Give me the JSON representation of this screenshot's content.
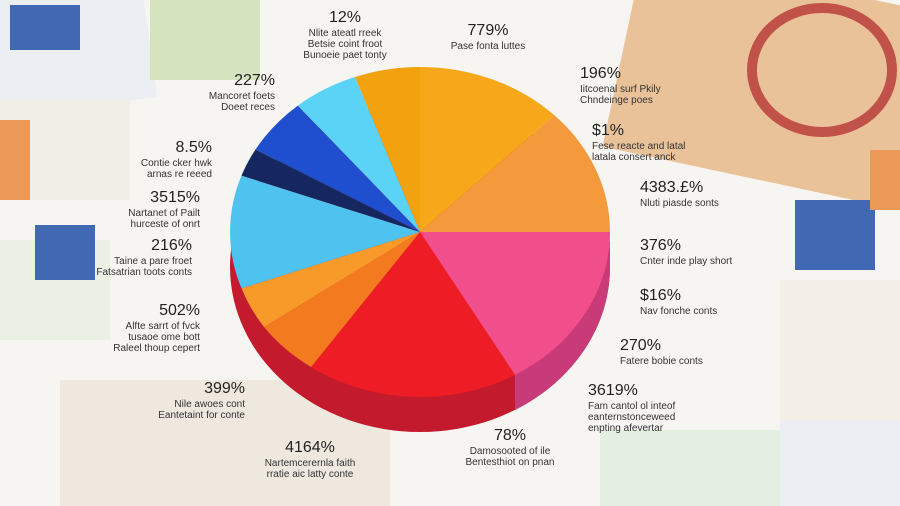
{
  "callouts": [
    {
      "figure": "12%",
      "lines": [
        "Nlite ateatl rreek",
        "Betsie coint froot",
        "Bunoeie paet tonty"
      ]
    },
    {
      "figure": "779%",
      "lines": [
        "Pase fonta luttes"
      ]
    },
    {
      "figure": "196%",
      "lines": [
        "Iitcoenal surf Pkily",
        "Chndeinge poes"
      ]
    },
    {
      "figure": "$1%",
      "lines": [
        "Fese reacte and latal",
        "latala consert anck"
      ]
    },
    {
      "figure": "4383.£%",
      "lines": [
        "Nluti piasde sonts"
      ]
    },
    {
      "figure": "376%",
      "lines": [
        "Cnter inde play short"
      ]
    },
    {
      "figure": "$16%",
      "lines": [
        "Nav fonche conts"
      ]
    },
    {
      "figure": "270%",
      "lines": [
        "Fatere bobie conts"
      ]
    },
    {
      "figure": "3619%",
      "lines": [
        "Fam cantol ol inteof",
        "eanternstonceweed",
        "enpting afevertar"
      ]
    },
    {
      "figure": "78%",
      "lines": [
        "Damosooted of ile",
        "Bentesthiot on pnan"
      ]
    },
    {
      "figure": "4164%",
      "lines": [
        "Nartemcerernla faith",
        "rratie aic latty conte"
      ]
    },
    {
      "figure": "399%",
      "lines": [
        "Nile awoes cont",
        "Eantetaint for conte"
      ]
    },
    {
      "figure": "502%",
      "lines": [
        "Alfte sarrt of fvck",
        "tusaoe ome bott",
        "Raleel thoup cepert"
      ]
    },
    {
      "figure": "216%",
      "lines": [
        "Taine a pare froet",
        "Fatsatrian toots conts"
      ]
    },
    {
      "figure": "3515%",
      "lines": [
        "Nartanet of Pailt",
        "hurceste of onrt"
      ]
    },
    {
      "figure": "8.5%",
      "lines": [
        "Contie cker hwk",
        "arnas re reeed"
      ]
    },
    {
      "figure": "227%",
      "lines": [
        "Mancoret foets",
        "Doeet reces"
      ]
    }
  ]
}
